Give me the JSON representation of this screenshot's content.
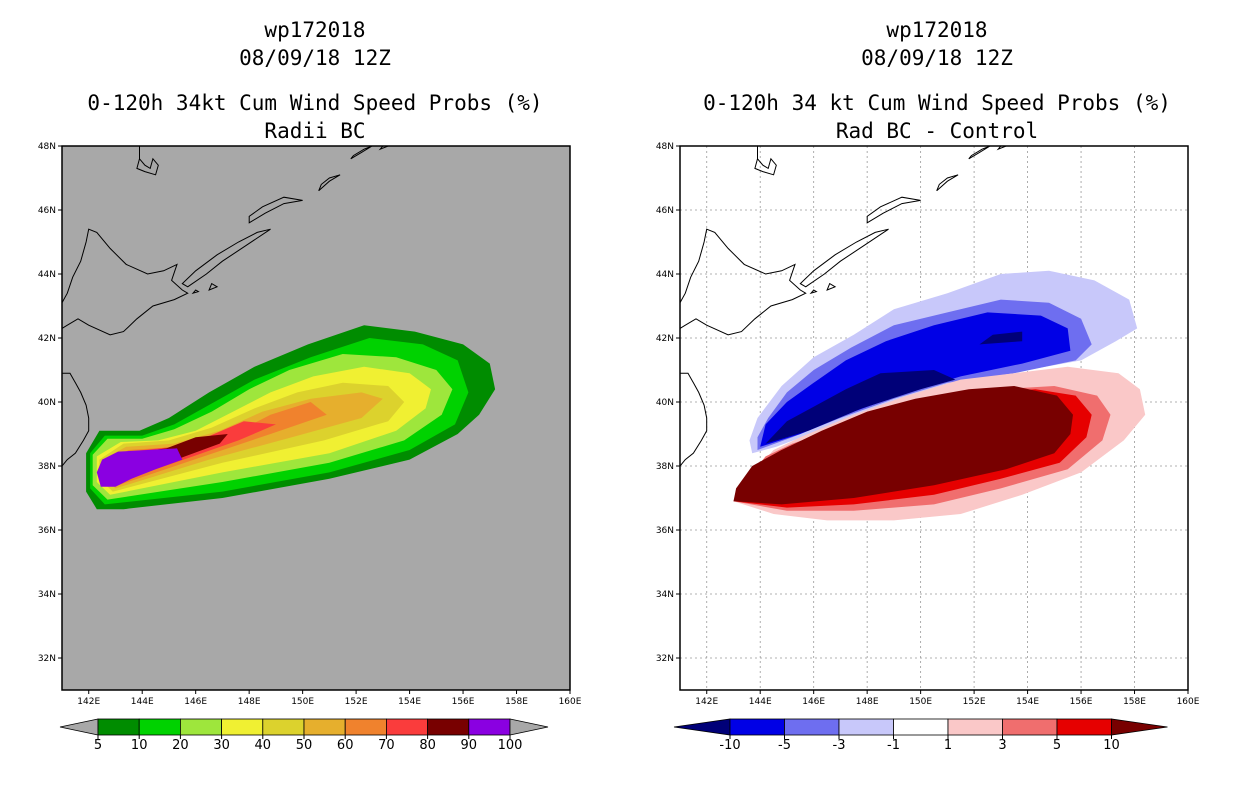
{
  "left": {
    "title_id": "wp172018",
    "title_date": "08/09/18 12Z",
    "title_product": "0-120h 34kt Cum Wind Speed Probs (%)",
    "title_sub": "Radii BC",
    "ocean_color": "#a8a8a8",
    "land_color": "#a8a8a8",
    "legend": {
      "labels": [
        "5",
        "10",
        "20",
        "30",
        "40",
        "50",
        "60",
        "70",
        "80",
        "90",
        "100"
      ],
      "colors": [
        "#a8a8a8",
        "#008c00",
        "#00d200",
        "#9ee63c",
        "#f0f032",
        "#dcd22d",
        "#e6af2d",
        "#f0822d",
        "#fa3c3c",
        "#780000",
        "#8a00e1",
        "#a8a8a8"
      ]
    }
  },
  "right": {
    "title_id": "wp172018",
    "title_date": "08/09/18 12Z",
    "title_product": "0-120h 34 kt Cum Wind Speed Probs (%)",
    "title_sub": "Rad BC - Control",
    "legend": {
      "labels": [
        "-10",
        "-5",
        "-3",
        "-1",
        "1",
        "3",
        "5",
        "10"
      ],
      "colors": [
        "#000078",
        "#0000e6",
        "#6e6ef0",
        "#c8c8fa",
        "#ffffff",
        "#fac8c8",
        "#f06e6e",
        "#e60000",
        "#780000"
      ]
    }
  },
  "axes": {
    "lon_labels": [
      "142E",
      "144E",
      "146E",
      "148E",
      "150E",
      "152E",
      "154E",
      "156E",
      "158E",
      "160E"
    ],
    "lat_labels": [
      "32N",
      "34N",
      "36N",
      "38N",
      "40N",
      "42N",
      "44N",
      "46N",
      "48N"
    ]
  },
  "chart_data": [
    {
      "type": "heatmap",
      "title": "0-120h 34kt Cum Wind Speed Probs (%) Radii BC",
      "storm": "wp172018",
      "valid": "08/09/18 12Z",
      "units": "%",
      "xlim": [
        141,
        160
      ],
      "ylim": [
        31,
        48
      ],
      "contour_levels": [
        5,
        10,
        20,
        30,
        40,
        50,
        60,
        70,
        80,
        90,
        100
      ],
      "max_region": {
        "lon": [
          142.3,
          145.5
        ],
        "lat": [
          37.4,
          38.6
        ],
        "value": "90-100"
      },
      "extent_5pct": {
        "lon": [
          141.9,
          157.2
        ],
        "lat": [
          36.7,
          42.4
        ]
      }
    },
    {
      "type": "heatmap",
      "title": "0-120h 34 kt Cum Wind Speed Probs (%) Rad BC - Control",
      "storm": "wp172018",
      "valid": "08/09/18 12Z",
      "units": "%",
      "xlim": [
        141,
        160
      ],
      "ylim": [
        31,
        48
      ],
      "contour_levels": [
        -10,
        -5,
        -3,
        -1,
        1,
        3,
        5,
        10
      ],
      "negative_max_region": {
        "lon": [
          143.5,
          152
        ],
        "lat": [
          38.8,
          41.5
        ],
        "value": "< -10"
      },
      "positive_max_region": {
        "lon": [
          143,
          155.5
        ],
        "lat": [
          36.8,
          40.6
        ],
        "value": "> 10"
      }
    }
  ]
}
